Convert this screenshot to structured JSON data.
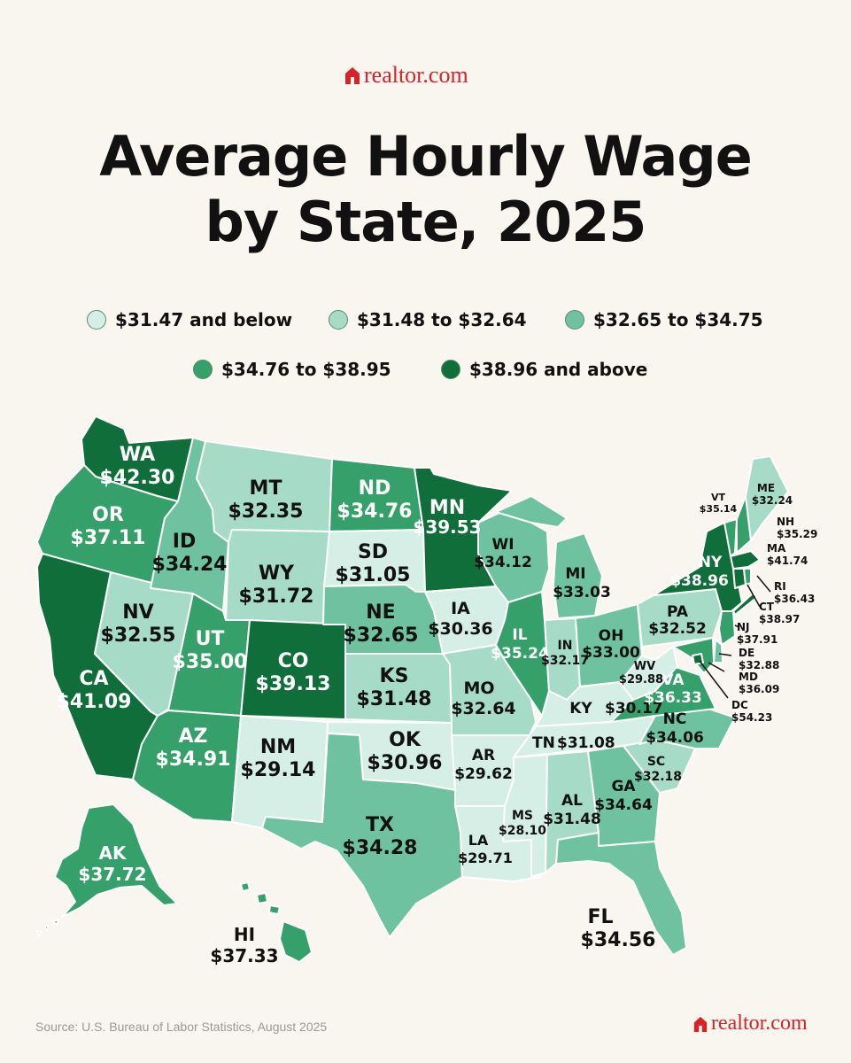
{
  "brand": {
    "name": "realtor.com",
    "color": "#d92228"
  },
  "title": {
    "line1": "Average Hourly Wage",
    "line2": "by State, 2025"
  },
  "legend": [
    {
      "label": "$31.47 and below",
      "color": "#d5efe6"
    },
    {
      "label": "$31.48 to $32.64",
      "color": "#a6dcc7"
    },
    {
      "label": "$32.65 to $34.75",
      "color": "#6fc2a0"
    },
    {
      "label": "$34.76 to $38.95",
      "color": "#36a06a"
    },
    {
      "label": "$38.96 and above",
      "color": "#0f6e3a"
    }
  ],
  "states": {
    "WA": {
      "abbr": "WA",
      "wage": "$42.30"
    },
    "OR": {
      "abbr": "OR",
      "wage": "$37.11"
    },
    "CA": {
      "abbr": "CA",
      "wage": "$41.09"
    },
    "NV": {
      "abbr": "NV",
      "wage": "$32.55"
    },
    "ID": {
      "abbr": "ID",
      "wage": "$34.24"
    },
    "MT": {
      "abbr": "MT",
      "wage": "$32.35"
    },
    "WY": {
      "abbr": "WY",
      "wage": "$31.72"
    },
    "UT": {
      "abbr": "UT",
      "wage": "$35.00"
    },
    "AZ": {
      "abbr": "AZ",
      "wage": "$34.91"
    },
    "CO": {
      "abbr": "CO",
      "wage": "$39.13"
    },
    "NM": {
      "abbr": "NM",
      "wage": "$29.14"
    },
    "ND": {
      "abbr": "ND",
      "wage": "$34.76"
    },
    "SD": {
      "abbr": "SD",
      "wage": "$31.05"
    },
    "NE": {
      "abbr": "NE",
      "wage": "$32.65"
    },
    "KS": {
      "abbr": "KS",
      "wage": "$31.48"
    },
    "OK": {
      "abbr": "OK",
      "wage": "$30.96"
    },
    "TX": {
      "abbr": "TX",
      "wage": "$34.28"
    },
    "MN": {
      "abbr": "MN",
      "wage": "$39.53"
    },
    "IA": {
      "abbr": "IA",
      "wage": "$30.36"
    },
    "MO": {
      "abbr": "MO",
      "wage": "$32.64"
    },
    "AR": {
      "abbr": "AR",
      "wage": "$29.62"
    },
    "LA": {
      "abbr": "LA",
      "wage": "$29.71"
    },
    "WI": {
      "abbr": "WI",
      "wage": "$34.12"
    },
    "IL": {
      "abbr": "IL",
      "wage": "$35.24"
    },
    "MI": {
      "abbr": "MI",
      "wage": "$33.03"
    },
    "IN": {
      "abbr": "IN",
      "wage": "$32.17"
    },
    "OH": {
      "abbr": "OH",
      "wage": "$33.00"
    },
    "KY": {
      "abbr": "KY",
      "wage": "$30.17"
    },
    "TN": {
      "abbr": "TN",
      "wage": "$31.08"
    },
    "MS": {
      "abbr": "MS",
      "wage": "$28.10"
    },
    "AL": {
      "abbr": "AL",
      "wage": "$31.48"
    },
    "GA": {
      "abbr": "GA",
      "wage": "$34.64"
    },
    "FL": {
      "abbr": "FL",
      "wage": "$34.56"
    },
    "SC": {
      "abbr": "SC",
      "wage": "$32.18"
    },
    "NC": {
      "abbr": "NC",
      "wage": "$34.06"
    },
    "VA": {
      "abbr": "VA",
      "wage": "$36.33"
    },
    "WV": {
      "abbr": "WV",
      "wage": "$29.88"
    },
    "PA": {
      "abbr": "PA",
      "wage": "$32.52"
    },
    "NY": {
      "abbr": "NY",
      "wage": "$38.96"
    },
    "VT": {
      "abbr": "VT",
      "wage": "$35.14"
    },
    "NH": {
      "abbr": "NH",
      "wage": "$35.29"
    },
    "ME": {
      "abbr": "ME",
      "wage": "$32.24"
    },
    "MA": {
      "abbr": "MA",
      "wage": "$41.74"
    },
    "RI": {
      "abbr": "RI",
      "wage": "$36.43"
    },
    "CT": {
      "abbr": "CT",
      "wage": "$38.97"
    },
    "NJ": {
      "abbr": "NJ",
      "wage": "$37.91"
    },
    "DE": {
      "abbr": "DE",
      "wage": "$32.88"
    },
    "MD": {
      "abbr": "MD",
      "wage": "$36.09"
    },
    "DC": {
      "abbr": "DC",
      "wage": "$54.23"
    },
    "AK": {
      "abbr": "AK",
      "wage": "$37.72"
    },
    "HI": {
      "abbr": "HI",
      "wage": "$37.33"
    }
  },
  "source": "Source: U.S. Bureau of Labor Statistics, August 2025"
}
